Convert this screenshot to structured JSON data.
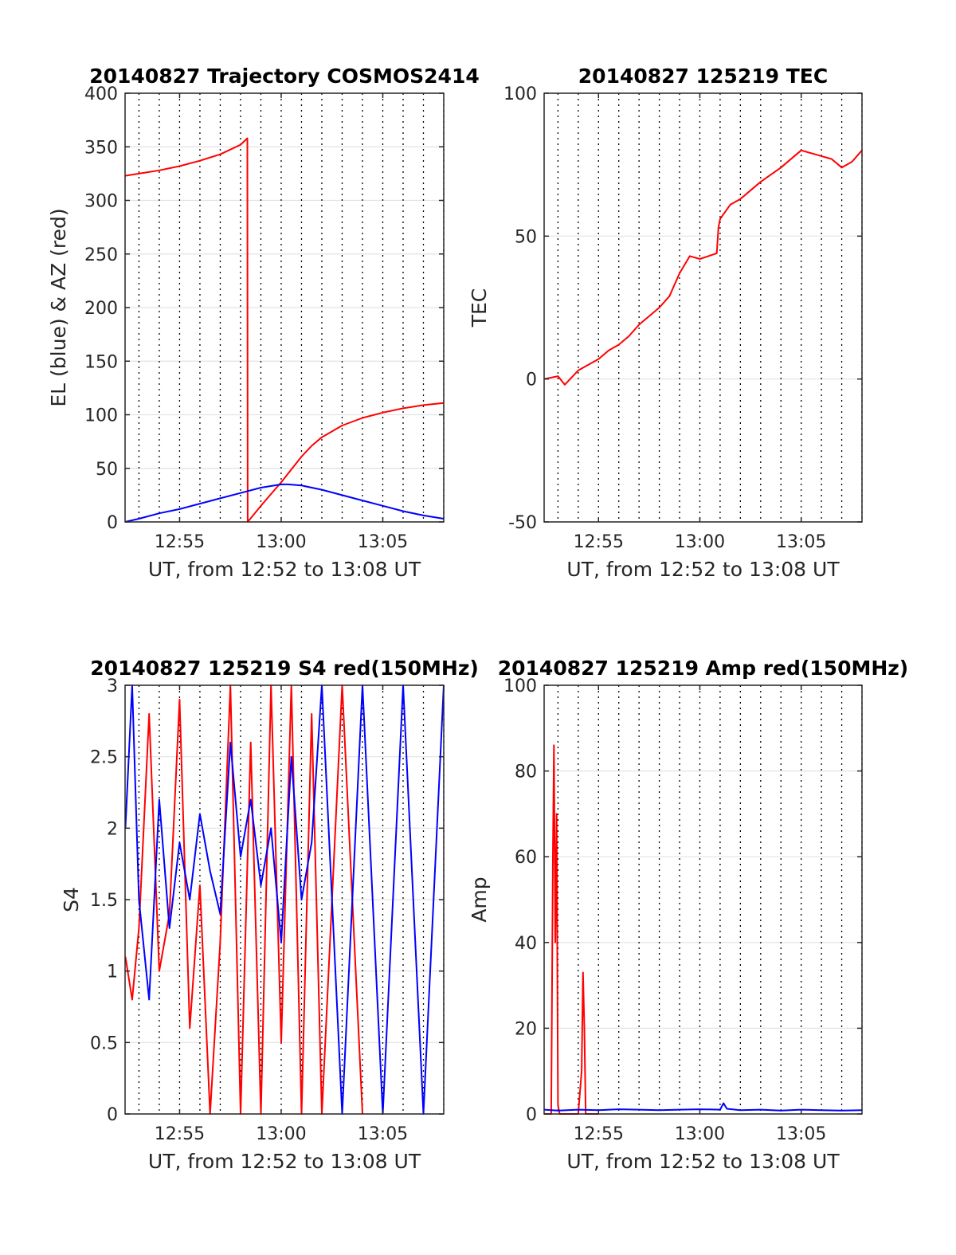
{
  "chart_data": [
    {
      "type": "line",
      "title": "20140827 Trajectory COSMOS2414",
      "xlabel": "UT, from 12:52 to 13:08 UT",
      "ylabel": "EL (blue) & AZ (red)",
      "xlim": [
        "12:52:19",
        "13:08:00"
      ],
      "ylim": [
        0,
        400
      ],
      "yticks": [
        0,
        50,
        100,
        150,
        200,
        250,
        300,
        350,
        400
      ],
      "xticks": [
        "12:55",
        "13:00",
        "13:05"
      ],
      "grid": true,
      "series": [
        {
          "color": "#ff0000",
          "x": [
            "12:52:19",
            "12:53",
            "12:54",
            "12:55",
            "12:56",
            "12:57",
            "12:58",
            "12:58:20",
            "12:58:21",
            "12:59",
            "12:59:30",
            "13:00",
            "13:00:30",
            "13:01",
            "13:01:30",
            "13:02",
            "13:03",
            "13:04",
            "13:05",
            "13:06",
            "13:07",
            "13:08"
          ],
          "y": [
            323,
            325,
            328,
            332,
            337,
            343,
            352,
            358,
            0,
            15,
            26,
            37,
            49,
            61,
            71,
            79,
            90,
            97,
            102,
            106,
            109,
            111
          ]
        },
        {
          "color": "#0000ff",
          "x": [
            "12:52:19",
            "12:53",
            "12:54",
            "12:55",
            "12:56",
            "12:57",
            "12:58",
            "12:59",
            "13:00",
            "13:00:20",
            "13:01",
            "13:02",
            "13:03",
            "13:04",
            "13:05",
            "13:06",
            "13:07",
            "13:08"
          ],
          "y": [
            0,
            3,
            8,
            12,
            17,
            22,
            27,
            32,
            35,
            35,
            34,
            30,
            25,
            20,
            15,
            10,
            6,
            3
          ]
        }
      ]
    },
    {
      "type": "line",
      "title": "20140827 125219 TEC",
      "xlabel": "UT, from 12:52 to 13:08 UT",
      "ylabel": "TEC",
      "xlim": [
        "12:52:19",
        "13:08:00"
      ],
      "ylim": [
        -50,
        100
      ],
      "yticks": [
        -50,
        0,
        50,
        100
      ],
      "xticks": [
        "12:55",
        "13:00",
        "13:05"
      ],
      "grid": true,
      "series": [
        {
          "color": "#ff0000",
          "x": [
            "12:52:19",
            "12:53",
            "12:53:20",
            "12:54",
            "12:55",
            "12:55:30",
            "12:56",
            "12:56:30",
            "12:57",
            "12:58",
            "12:58:30",
            "12:59",
            "12:59:30",
            "13:00",
            "13:00:50",
            "13:00:55",
            "13:01",
            "13:01:30",
            "13:02",
            "13:03",
            "13:04",
            "13:05",
            "13:05:30",
            "13:06",
            "13:06:30",
            "13:07",
            "13:07:30",
            "13:08"
          ],
          "y": [
            0,
            1,
            -2,
            3,
            7,
            10,
            12,
            15,
            19,
            25,
            29,
            37,
            43,
            42,
            44,
            53,
            56,
            61,
            63,
            69,
            74,
            80,
            79,
            78,
            77,
            74,
            76,
            80
          ]
        }
      ]
    },
    {
      "type": "line",
      "title": "20140827 125219 S4 red(150MHz)",
      "xlabel": "UT, from 12:52 to 13:08 UT",
      "ylabel": "S4",
      "xlim": [
        "12:52:19",
        "13:08:00"
      ],
      "ylim": [
        0,
        3
      ],
      "yticks": [
        0,
        0.5,
        1,
        1.5,
        2,
        2.5,
        3
      ],
      "xticks": [
        "12:55",
        "13:00",
        "13:05"
      ],
      "grid": true,
      "series": [
        {
          "color": "#ff0000",
          "x": [
            "12:52:20",
            "12:52:40",
            "12:53",
            "12:53:30",
            "12:54",
            "12:54:30",
            "12:55",
            "12:55:30",
            "12:56",
            "12:56:30",
            "12:57",
            "12:57:30",
            "12:58",
            "12:58:30",
            "12:59",
            "12:59:30",
            "13:00",
            "13:00:30",
            "13:01",
            "13:01:30",
            "13:02",
            "13:03",
            "13:04"
          ],
          "y": [
            1.1,
            0.8,
            1.3,
            2.8,
            1.0,
            1.4,
            2.9,
            0.6,
            1.6,
            0.0,
            1.2,
            3.0,
            0.0,
            2.6,
            0.0,
            3.0,
            0.5,
            3.0,
            0.0,
            2.8,
            0.0,
            3.0,
            0.0
          ]
        },
        {
          "color": "#0000ff",
          "x": [
            "12:52:20",
            "12:52:40",
            "12:53",
            "12:53:30",
            "12:54",
            "12:54:30",
            "12:55",
            "12:55:30",
            "12:56",
            "12:56:30",
            "12:57",
            "12:57:30",
            "12:58",
            "12:58:30",
            "12:59",
            "12:59:30",
            "13:00",
            "13:00:30",
            "13:01",
            "13:01:30",
            "13:02",
            "13:03",
            "13:04",
            "13:05",
            "13:06",
            "13:07",
            "13:08"
          ],
          "y": [
            2.0,
            3.0,
            1.5,
            0.8,
            2.2,
            1.3,
            1.9,
            1.5,
            2.1,
            1.7,
            1.4,
            2.6,
            1.8,
            2.2,
            1.6,
            2.0,
            1.2,
            2.5,
            1.5,
            1.9,
            3.0,
            0.0,
            3.0,
            0.0,
            3.0,
            0.0,
            3.0
          ]
        }
      ]
    },
    {
      "type": "line",
      "title": "20140827 125219 Amp red(150MHz)",
      "xlabel": "UT, from 12:52 to 13:08 UT",
      "ylabel": "Amp",
      "xlim": [
        "12:52:19",
        "13:08:00"
      ],
      "ylim": [
        0,
        100
      ],
      "yticks": [
        0,
        20,
        40,
        60,
        80,
        100
      ],
      "xticks": [
        "12:55",
        "13:00",
        "13:05"
      ],
      "grid": true,
      "series": [
        {
          "color": "#ff0000",
          "x": [
            "12:52:19",
            "12:52:40",
            "12:52:45",
            "12:52:48",
            "12:52:52",
            "12:52:56",
            "12:53:00",
            "12:53:05",
            "12:53:15",
            "12:54:00",
            "12:54:10",
            "12:54:14",
            "12:54:18",
            "12:54:22",
            "12:54:30",
            "12:55:00"
          ],
          "y": [
            0,
            0,
            60,
            86,
            40,
            70,
            2,
            0,
            0,
            0,
            10,
            33,
            20,
            0,
            0,
            0
          ]
        },
        {
          "color": "#0000ff",
          "x": [
            "12:52:19",
            "12:53",
            "12:54",
            "12:55",
            "12:56",
            "12:57",
            "12:58",
            "12:59",
            "13:00",
            "13:01",
            "13:01:10",
            "13:01:20",
            "13:02",
            "13:03",
            "13:04",
            "13:05",
            "13:06",
            "13:07",
            "13:08"
          ],
          "y": [
            1,
            0.8,
            1,
            0.9,
            1.1,
            1,
            0.9,
            1,
            1.1,
            1,
            2.5,
            1.2,
            0.9,
            1,
            0.8,
            1,
            0.9,
            0.8,
            0.9
          ]
        }
      ]
    }
  ]
}
